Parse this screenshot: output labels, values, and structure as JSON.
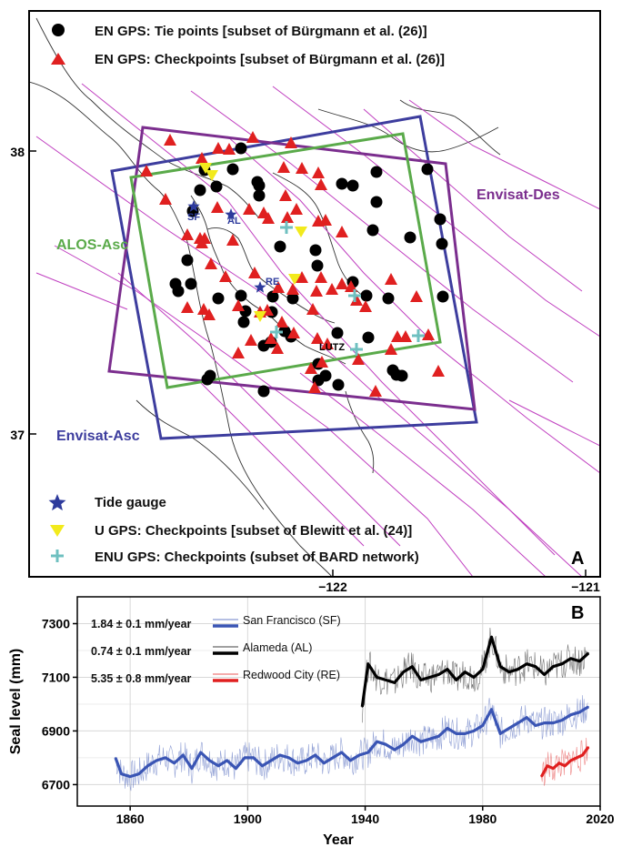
{
  "panel_a": {
    "letter": "A",
    "legend_top": [
      {
        "symbol": "circle",
        "label": "EN GPS: Tie points [subset of Bürgmann et al. (26)]"
      },
      {
        "symbol": "triangle",
        "label": "EN GPS:  Checkpoints [subset of Bürgmann et al. (26)]"
      }
    ],
    "legend_bottom": [
      {
        "symbol": "star",
        "label": "Tide gauge"
      },
      {
        "symbol": "triangle-down",
        "label": "U GPS: Checkpoints [subset of Blewitt et al. (24)]"
      },
      {
        "symbol": "plus",
        "label": "ENU GPS: Checkpoints (subset of BARD network)"
      }
    ],
    "y_ticks": [
      "38",
      "37"
    ],
    "x_ticks": [
      "−122",
      "−121"
    ],
    "frame_labels": {
      "envisat_des": "Envisat-Des",
      "alos_asc": "ALOS-Asc",
      "envisat_asc": "Envisat-Asc"
    },
    "station_labels": {
      "sf": "SF",
      "al": "AL",
      "re": "RE",
      "lutz": "LUTZ"
    },
    "colors": {
      "envisat_des": "#7b2e8e",
      "alos_asc": "#5aaa4a",
      "envisat_asc": "#3d3d9e",
      "tie_point": "#000000",
      "checkpoint": "#e02020",
      "tide_gauge": "#2d3a9c",
      "u_gps": "#f2ea1c",
      "enu_gps": "#6fc0c0",
      "fault": "#c040c0"
    }
  },
  "chart_data": {
    "type": "line",
    "panel_letter": "B",
    "xlabel": "Year",
    "ylabel": "Seal level (mm)",
    "xlim": [
      1842,
      2020
    ],
    "ylim": [
      6620,
      7400
    ],
    "x_ticks": [
      1860,
      1900,
      1940,
      1980,
      2020
    ],
    "y_ticks": [
      6700,
      6900,
      7100,
      7300
    ],
    "grid": true,
    "legend_placement": "top-left",
    "series": [
      {
        "name": "San Francisco (SF)",
        "rate": "1.84 ± 0.1 mm/year",
        "color": "#3a55b4",
        "x": [
          1855,
          1857,
          1860,
          1863,
          1866,
          1869,
          1872,
          1875,
          1878,
          1881,
          1884,
          1887,
          1890,
          1893,
          1896,
          1899,
          1902,
          1905,
          1908,
          1911,
          1914,
          1917,
          1920,
          1923,
          1926,
          1929,
          1932,
          1935,
          1938,
          1941,
          1944,
          1947,
          1950,
          1953,
          1956,
          1959,
          1962,
          1965,
          1968,
          1971,
          1974,
          1977,
          1980,
          1983,
          1986,
          1989,
          1992,
          1995,
          1998,
          2001,
          2004,
          2007,
          2010,
          2013,
          2016
        ],
        "values": [
          6800,
          6740,
          6730,
          6740,
          6770,
          6790,
          6800,
          6780,
          6810,
          6760,
          6820,
          6790,
          6770,
          6790,
          6760,
          6800,
          6800,
          6770,
          6790,
          6810,
          6800,
          6780,
          6790,
          6810,
          6780,
          6800,
          6820,
          6790,
          6810,
          6820,
          6860,
          6850,
          6830,
          6850,
          6880,
          6860,
          6870,
          6880,
          6910,
          6890,
          6890,
          6900,
          6920,
          6980,
          6890,
          6910,
          6930,
          6950,
          6920,
          6930,
          6930,
          6940,
          6960,
          6970,
          6990
        ]
      },
      {
        "name": "Alameda (AL)",
        "rate": "0.74 ± 0.1 mm/year",
        "color": "#000000",
        "x": [
          1939,
          1941,
          1944,
          1947,
          1950,
          1953,
          1956,
          1959,
          1962,
          1965,
          1968,
          1971,
          1974,
          1977,
          1980,
          1983,
          1986,
          1989,
          1992,
          1995,
          1998,
          2001,
          2004,
          2007,
          2010,
          2013,
          2016
        ],
        "values": [
          6990,
          7150,
          7100,
          7090,
          7080,
          7120,
          7140,
          7090,
          7100,
          7110,
          7130,
          7090,
          7120,
          7100,
          7130,
          7250,
          7140,
          7120,
          7130,
          7150,
          7140,
          7110,
          7140,
          7150,
          7170,
          7160,
          7190
        ]
      },
      {
        "name": "Redwood City (RE)",
        "rate": "5.35 ± 0.8 mm/year",
        "color": "#e02020",
        "x": [
          2000,
          2002,
          2004,
          2006,
          2008,
          2010,
          2012,
          2014,
          2016
        ],
        "values": [
          6730,
          6770,
          6760,
          6780,
          6770,
          6790,
          6800,
          6810,
          6840
        ]
      }
    ]
  }
}
